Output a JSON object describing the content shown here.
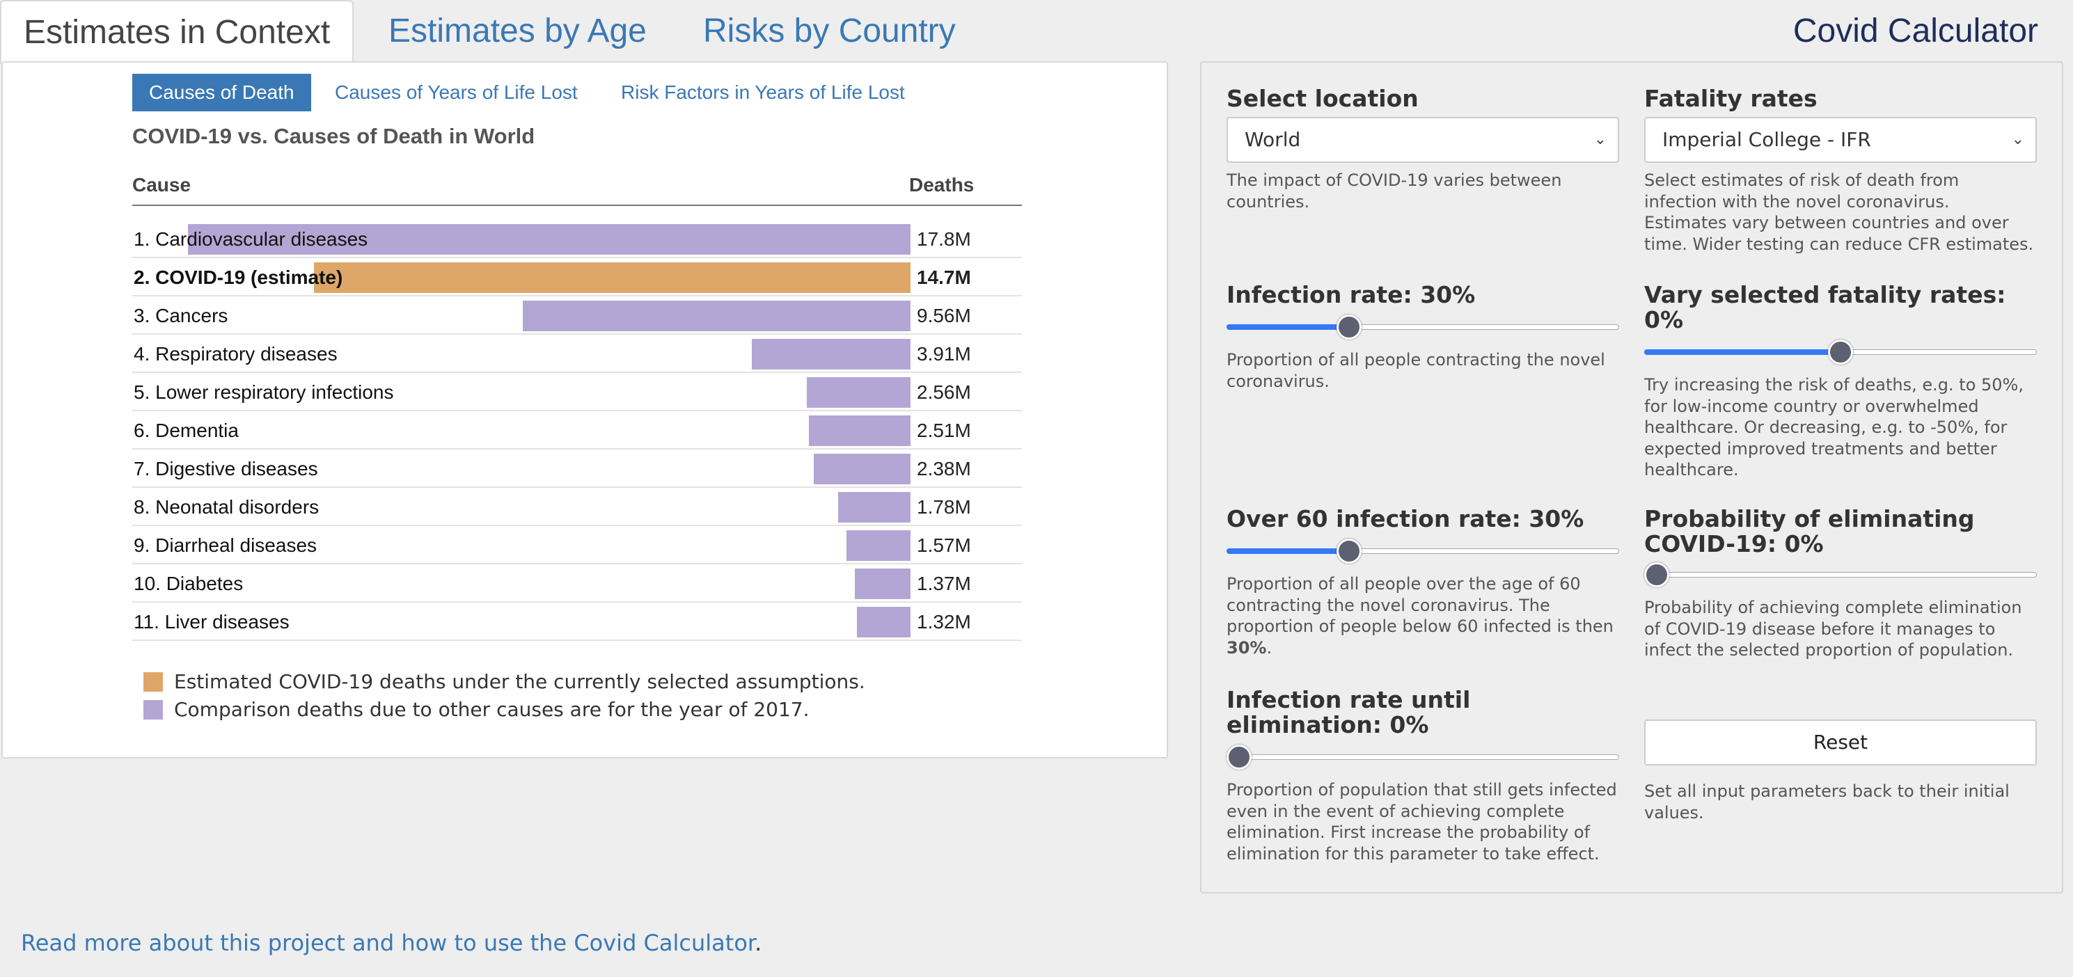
{
  "app_title": "Covid Calculator",
  "tabs": [
    {
      "label": "Estimates in Context",
      "active": true
    },
    {
      "label": "Estimates by Age",
      "active": false
    },
    {
      "label": "Risks by Country",
      "active": false
    }
  ],
  "subtabs": [
    {
      "label": "Causes of Death",
      "active": true
    },
    {
      "label": "Causes of Years of Life Lost",
      "active": false
    },
    {
      "label": "Risk Factors in Years of Life Lost",
      "active": false
    }
  ],
  "colors": {
    "covid": "#dea769",
    "comparison": "#b4a6d4",
    "accent": "#3a78b5",
    "slider_fill": "#3478f6"
  },
  "chart_data": {
    "type": "bar",
    "orientation": "horizontal",
    "title": "COVID-19 vs. Causes of Death in World",
    "column_headers": {
      "cause": "Cause",
      "value": "Deaths"
    },
    "xlim": [
      0,
      17.8
    ],
    "unit": "M",
    "rows": [
      {
        "label": "1. Cardiovascular diseases",
        "value": 17.8,
        "display": "17.8M",
        "covid": false
      },
      {
        "label": "2. COVID-19 (estimate)",
        "value": 14.7,
        "display": "14.7M",
        "covid": true
      },
      {
        "label": "3. Cancers",
        "value": 9.56,
        "display": "9.56M",
        "covid": false
      },
      {
        "label": "4. Respiratory diseases",
        "value": 3.91,
        "display": "3.91M",
        "covid": false
      },
      {
        "label": "5. Lower respiratory infections",
        "value": 2.56,
        "display": "2.56M",
        "covid": false
      },
      {
        "label": "6. Dementia",
        "value": 2.51,
        "display": "2.51M",
        "covid": false
      },
      {
        "label": "7. Digestive diseases",
        "value": 2.38,
        "display": "2.38M",
        "covid": false
      },
      {
        "label": "8. Neonatal disorders",
        "value": 1.78,
        "display": "1.78M",
        "covid": false
      },
      {
        "label": "9. Diarrheal diseases",
        "value": 1.57,
        "display": "1.57M",
        "covid": false
      },
      {
        "label": "10. Diabetes",
        "value": 1.37,
        "display": "1.37M",
        "covid": false
      },
      {
        "label": "11. Liver diseases",
        "value": 1.32,
        "display": "1.32M",
        "covid": false
      }
    ],
    "legend": [
      {
        "text": "Estimated COVID-19 deaths under the currently selected assumptions.",
        "color": "#dea769"
      },
      {
        "text": "Comparison deaths due to other causes are for the year of 2017.",
        "color": "#b4a6d4"
      }
    ]
  },
  "controls": {
    "location": {
      "title": "Select location",
      "value": "World",
      "desc": "The impact of COVID-19 varies between countries."
    },
    "fatality": {
      "title": "Fatality rates",
      "value": "Imperial College - IFR",
      "desc": "Select estimates of risk of death from infection with the novel coronavirus. Estimates vary between countries and over time. Wider testing can reduce CFR estimates."
    },
    "infection_rate": {
      "title": "Infection rate: 30%",
      "value": 0.3,
      "desc": "Proportion of all people contracting the novel coronavirus."
    },
    "vary_fatality": {
      "title": "Vary selected fatality rates: 0%",
      "value": 0.5,
      "desc": "Try increasing the risk of deaths, e.g. to 50%, for low-income country or overwhelmed healthcare. Or decreasing, e.g. to -50%, for expected improved treatments and better healthcare."
    },
    "over60": {
      "title": "Over 60 infection rate: 30%",
      "value": 0.3,
      "desc_pre": "Proportion of all people over the age of 60 contracting the novel coronavirus. The proportion of people below 60 infected is then ",
      "desc_bold": "30%",
      "desc_post": "."
    },
    "elimination": {
      "title": "Probability of eliminating COVID-19: 0%",
      "value": 0.0,
      "desc": "Probability of achieving complete elimination of COVID-19 disease before it manages to infect the selected proportion of population."
    },
    "until_elimination": {
      "title": "Infection rate until elimination: 0%",
      "value": 0.0,
      "desc": "Proportion of population that still gets infected even in the event of achieving complete elimination. First increase the probability of elimination for this parameter to take effect."
    },
    "reset": {
      "label": "Reset",
      "desc": "Set all input parameters back to their initial values."
    }
  },
  "footer": {
    "link_text": "Read more about this project and how to use the Covid Calculator",
    "trailing": "."
  }
}
